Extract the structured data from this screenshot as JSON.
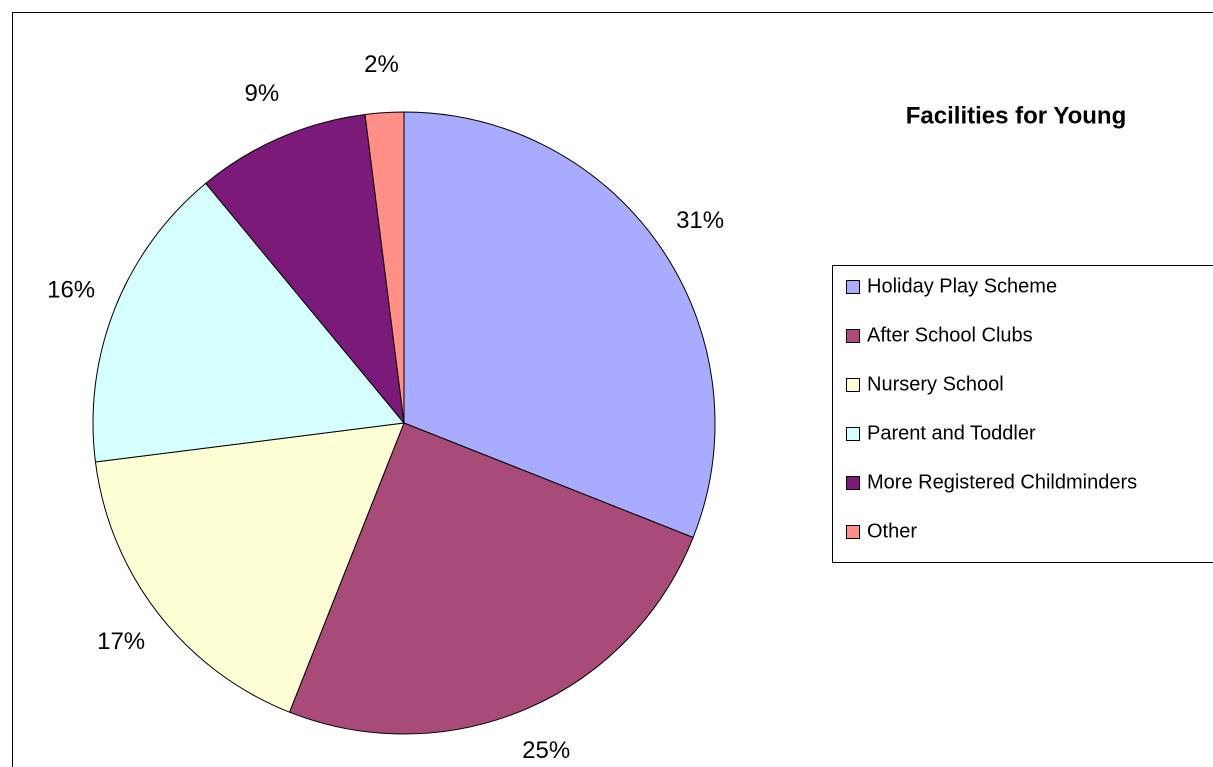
{
  "chart_data": {
    "type": "pie",
    "title": "Facilities for Young",
    "categories": [
      "Holiday Play Scheme",
      "After School Clubs",
      "Nursery School",
      "Parent and Toddler",
      "More Registered Childminders",
      "Other"
    ],
    "values": [
      31,
      25,
      17,
      16,
      9,
      2
    ],
    "value_labels": [
      "31%",
      "25%",
      "17%",
      "16%",
      "9%",
      "2%"
    ],
    "colors": [
      "#a9abff",
      "#a94b78",
      "#ffffd6",
      "#d6ffff",
      "#7b1a78",
      "#ff8f87"
    ],
    "legend": "right"
  }
}
